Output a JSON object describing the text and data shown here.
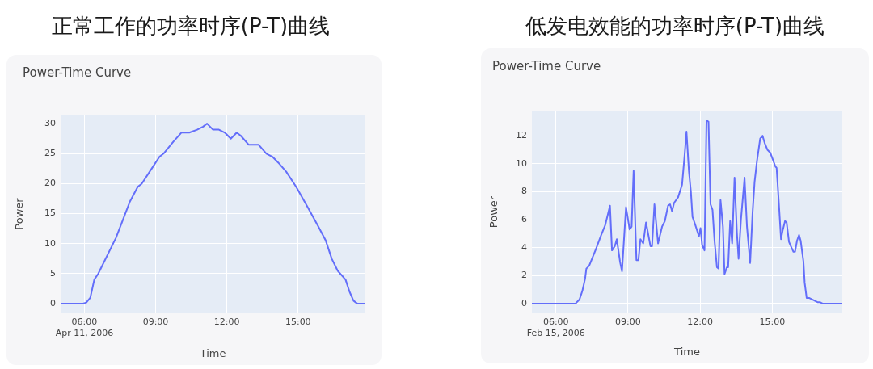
{
  "chart_data": [
    {
      "type": "line",
      "title": "正常工作的功率时序(P-T)曲线",
      "subtitle": "Power-Time Curve",
      "xlabel": "Time",
      "ylabel": "Power",
      "color": "#636efa",
      "grid": true,
      "xlim": [
        "2006-04-11T05:00",
        "2006-04-11T17:50"
      ],
      "ylim": [
        -1.6,
        31.5
      ],
      "xticks": [
        {
          "value": "2006-04-11T06:00",
          "label": "06:00\nApr 11, 2006"
        },
        {
          "value": "2006-04-11T09:00",
          "label": "09:00"
        },
        {
          "value": "2006-04-11T12:00",
          "label": "12:00"
        },
        {
          "value": "2006-04-11T15:00",
          "label": "15:00"
        }
      ],
      "yticks": [
        0,
        5,
        10,
        15,
        20,
        25,
        30
      ],
      "x": [
        "2006-04-11T05:00",
        "2006-04-11T05:55",
        "2006-04-11T06:05",
        "2006-04-11T06:15",
        "2006-04-11T06:25",
        "2006-04-11T06:35",
        "2006-04-11T07:20",
        "2006-04-11T07:55",
        "2006-04-11T08:15",
        "2006-04-11T08:25",
        "2006-04-11T08:50",
        "2006-04-11T09:10",
        "2006-04-11T09:20",
        "2006-04-11T09:45",
        "2006-04-11T10:05",
        "2006-04-11T10:25",
        "2006-04-11T10:45",
        "2006-04-11T11:00",
        "2006-04-11T11:10",
        "2006-04-11T11:25",
        "2006-04-11T11:40",
        "2006-04-11T11:55",
        "2006-04-11T12:10",
        "2006-04-11T12:25",
        "2006-04-11T12:35",
        "2006-04-11T12:55",
        "2006-04-11T13:05",
        "2006-04-11T13:20",
        "2006-04-11T13:40",
        "2006-04-11T13:55",
        "2006-04-11T14:10",
        "2006-04-11T14:30",
        "2006-04-11T14:55",
        "2006-04-11T15:25",
        "2006-04-11T15:50",
        "2006-04-11T16:10",
        "2006-04-11T16:25",
        "2006-04-11T16:40",
        "2006-04-11T17:00",
        "2006-04-11T17:10",
        "2006-04-11T17:20",
        "2006-04-11T17:30",
        "2006-04-11T17:50"
      ],
      "values": [
        0,
        0,
        0.2,
        1,
        4,
        5,
        11,
        17,
        19.5,
        20,
        22.5,
        24.5,
        25,
        27,
        28.5,
        28.5,
        29,
        29.5,
        30,
        29,
        29,
        28.5,
        27.5,
        28.5,
        28,
        26.5,
        26.5,
        26.5,
        25,
        24.5,
        23.5,
        22,
        19.5,
        16,
        13,
        10.5,
        7.5,
        5.5,
        4,
        2,
        0.5,
        0,
        0
      ]
    },
    {
      "type": "line",
      "title": "低发电效能的功率时序(P-T)曲线",
      "subtitle": "Power-Time Curve",
      "xlabel": "Time",
      "ylabel": "Power",
      "color": "#636efa",
      "grid": true,
      "xlim": [
        "2006-02-15T05:00",
        "2006-02-15T17:55"
      ],
      "ylim": [
        -0.7,
        13.8
      ],
      "xticks": [
        {
          "value": "2006-02-15T06:00",
          "label": "06:00\nFeb 15, 2006"
        },
        {
          "value": "2006-02-15T09:00",
          "label": "09:00"
        },
        {
          "value": "2006-02-15T12:00",
          "label": "12:00"
        },
        {
          "value": "2006-02-15T15:00",
          "label": "15:00"
        }
      ],
      "yticks": [
        0,
        2,
        4,
        6,
        8,
        10,
        12
      ],
      "x": [
        "2006-02-15T05:00",
        "2006-02-15T06:49",
        "2006-02-15T06:59",
        "2006-02-15T07:06",
        "2006-02-15T07:13",
        "2006-02-15T07:16",
        "2006-02-15T07:23",
        "2006-02-15T07:40",
        "2006-02-15T07:53",
        "2006-02-15T08:03",
        "2006-02-15T08:15",
        "2006-02-15T08:20",
        "2006-02-15T08:27",
        "2006-02-15T08:32",
        "2006-02-15T08:40",
        "2006-02-15T08:45",
        "2006-02-15T08:55",
        "2006-02-15T09:04",
        "2006-02-15T09:09",
        "2006-02-15T09:14",
        "2006-02-15T09:21",
        "2006-02-15T09:26",
        "2006-02-15T09:31",
        "2006-02-15T09:38",
        "2006-02-15T09:45",
        "2006-02-15T09:56",
        "2006-02-15T10:00",
        "2006-02-15T10:06",
        "2006-02-15T10:15",
        "2006-02-15T10:25",
        "2006-02-15T10:32",
        "2006-02-15T10:40",
        "2006-02-15T10:45",
        "2006-02-15T10:50",
        "2006-02-15T10:55",
        "2006-02-15T11:05",
        "2006-02-15T11:15",
        "2006-02-15T11:21",
        "2006-02-15T11:26",
        "2006-02-15T11:32",
        "2006-02-15T11:37",
        "2006-02-15T11:41",
        "2006-02-15T11:46",
        "2006-02-15T11:55",
        "2006-02-15T11:57",
        "2006-02-15T12:01",
        "2006-02-15T12:05",
        "2006-02-15T12:11",
        "2006-02-15T12:16",
        "2006-02-15T12:21",
        "2006-02-15T12:26",
        "2006-02-15T12:31",
        "2006-02-15T12:36",
        "2006-02-15T12:42",
        "2006-02-15T12:46",
        "2006-02-15T12:51",
        "2006-02-15T12:57",
        "2006-02-15T13:01",
        "2006-02-15T13:07",
        "2006-02-15T13:10",
        "2006-02-15T13:15",
        "2006-02-15T13:20",
        "2006-02-15T13:26",
        "2006-02-15T13:32",
        "2006-02-15T13:36",
        "2006-02-15T13:42",
        "2006-02-15T13:51",
        "2006-02-15T13:57",
        "2006-02-15T14:05",
        "2006-02-15T14:11",
        "2006-02-15T14:16",
        "2006-02-15T14:22",
        "2006-02-15T14:30",
        "2006-02-15T14:36",
        "2006-02-15T14:41",
        "2006-02-15T14:48",
        "2006-02-15T14:55",
        "2006-02-15T14:59",
        "2006-02-15T15:08",
        "2006-02-15T15:11",
        "2006-02-15T15:17",
        "2006-02-15T15:22",
        "2006-02-15T15:26",
        "2006-02-15T15:32",
        "2006-02-15T15:36",
        "2006-02-15T15:42",
        "2006-02-15T15:45",
        "2006-02-15T15:53",
        "2006-02-15T15:57",
        "2006-02-15T16:02",
        "2006-02-15T16:07",
        "2006-02-15T16:11",
        "2006-02-15T16:18",
        "2006-02-15T16:21",
        "2006-02-15T16:26",
        "2006-02-15T16:32",
        "2006-02-15T16:39",
        "2006-02-15T16:46",
        "2006-02-15T16:53",
        "2006-02-15T16:59",
        "2006-02-15T17:06",
        "2006-02-15T17:55"
      ],
      "values": [
        0,
        0,
        0.3,
        0.9,
        1.8,
        2.5,
        2.7,
        3.9,
        4.9,
        5.6,
        7.0,
        3.8,
        4.1,
        4.6,
        3.0,
        2.3,
        6.9,
        5.3,
        5.5,
        9.5,
        3.1,
        3.1,
        4.6,
        4.3,
        5.8,
        4.1,
        4.1,
        7.1,
        4.3,
        5.5,
        5.9,
        7.0,
        7.1,
        6.6,
        7.2,
        7.6,
        8.5,
        10.5,
        12.3,
        9.5,
        8.0,
        6.2,
        5.8,
        5.0,
        4.8,
        5.4,
        4.2,
        3.8,
        13.1,
        13.0,
        7.1,
        6.7,
        4.5,
        2.6,
        2.5,
        7.4,
        5.5,
        2.1,
        2.6,
        2.6,
        5.9,
        4.3,
        9.0,
        5.0,
        3.2,
        6.0,
        9.0,
        5.5,
        2.9,
        6.5,
        8.7,
        10.2,
        11.8,
        12.0,
        11.5,
        11.0,
        10.8,
        10.5,
        9.8,
        9.7,
        7.0,
        4.6,
        5.2,
        5.9,
        5.8,
        4.4,
        4.2,
        3.7,
        3.7,
        4.5,
        4.9,
        4.5,
        3.0,
        1.5,
        0.4,
        0.4,
        0.3,
        0.2,
        0.1,
        0.1,
        0,
        0
      ]
    }
  ]
}
